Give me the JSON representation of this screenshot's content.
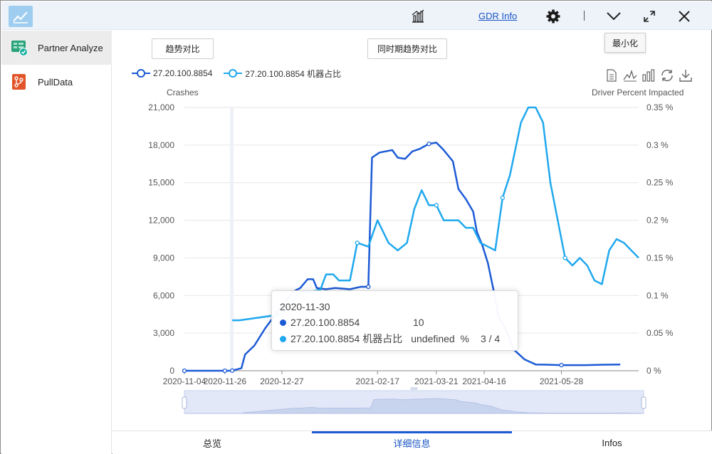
{
  "window": {
    "gdr_link": "GDR Info",
    "minimize_tooltip": "最小化",
    "icons": [
      "chart-icon",
      "settings-gear-icon",
      "chevron-down-icon",
      "fullscreen-icon",
      "close-icon"
    ]
  },
  "sidebar": {
    "items": [
      {
        "label": "Partner Analyze",
        "icon": "partner-analyze-icon",
        "active": true
      },
      {
        "label": "PullData",
        "icon": "pull-data-icon",
        "active": false
      }
    ]
  },
  "buttons": {
    "trend_compare": "趋势对比",
    "same_period_compare": "同时期趋势对比"
  },
  "toolbox": [
    "data-view-icon",
    "line-chart-icon",
    "bar-chart-icon",
    "restore-icon",
    "download-icon"
  ],
  "tooltip": {
    "date": "2020-11-30",
    "rows": [
      {
        "name": "27.20.100.8854",
        "value": "10",
        "extra": ""
      },
      {
        "name": "27.20.100.8854 机器占比",
        "value": "undefined  %",
        "extra": "3 / 4"
      }
    ]
  },
  "tabs": [
    {
      "label": "总览",
      "active": false
    },
    {
      "label": "详细信息",
      "active": true
    },
    {
      "label": "Infos",
      "active": false
    }
  ],
  "colors": {
    "series1": "#1d5bd6",
    "series2": "#1fa8ee",
    "accent": "#1a55c6",
    "grid": "#e6e6e6"
  },
  "chart_data": {
    "type": "line",
    "y_axis_name": "Crashes",
    "y2_axis_name": "Driver Percent Impacted",
    "ylim": [
      0,
      21000
    ],
    "y_ticks": [
      "0",
      "3,000",
      "6,000",
      "9,000",
      "12,000",
      "15,000",
      "18,000",
      "21,000"
    ],
    "y2lim": [
      0,
      0.35
    ],
    "y2_ticks": [
      "0 %",
      "0.05 %",
      "0.1 %",
      "0.15 %",
      "0.2 %",
      "0.25 %",
      "0.3 %",
      "0.35 %"
    ],
    "x_ticks": [
      "2020-11-04",
      "2020-11-26",
      "2020-12-27",
      "2021-02-17",
      "2021-03-21",
      "2021-04-16",
      "2021-05-28"
    ],
    "legend_position": "top-left",
    "grid": true,
    "highlighted_x": "2020-11-30",
    "series": [
      {
        "name": "27.20.100.8854",
        "axis": "left",
        "points": [
          [
            "2020-11-04",
            0
          ],
          [
            "2020-11-26",
            0
          ],
          [
            "2020-11-30",
            10
          ],
          [
            "2020-12-05",
            200
          ],
          [
            "2020-12-07",
            1300
          ],
          [
            "2020-12-12",
            2000
          ],
          [
            "2020-12-18",
            3400
          ],
          [
            "2020-12-27",
            5200
          ],
          [
            "2021-01-02",
            6300
          ],
          [
            "2021-01-06",
            6600
          ],
          [
            "2021-01-10",
            7300
          ],
          [
            "2021-01-13",
            7300
          ],
          [
            "2021-01-15",
            6600
          ],
          [
            "2021-01-20",
            6500
          ],
          [
            "2021-01-25",
            6600
          ],
          [
            "2021-02-02",
            6500
          ],
          [
            "2021-02-08",
            6700
          ],
          [
            "2021-02-12",
            6700
          ],
          [
            "2021-02-14",
            17000
          ],
          [
            "2021-02-18",
            17400
          ],
          [
            "2021-02-25",
            17600
          ],
          [
            "2021-02-28",
            17000
          ],
          [
            "2021-03-04",
            16900
          ],
          [
            "2021-03-08",
            17500
          ],
          [
            "2021-03-12",
            17700
          ],
          [
            "2021-03-17",
            18100
          ],
          [
            "2021-03-21",
            18200
          ],
          [
            "2021-03-25",
            17600
          ],
          [
            "2021-03-30",
            16700
          ],
          [
            "2021-04-02",
            14500
          ],
          [
            "2021-04-06",
            13700
          ],
          [
            "2021-04-10",
            12700
          ],
          [
            "2021-04-12",
            11100
          ],
          [
            "2021-04-15",
            10000
          ],
          [
            "2021-04-18",
            8600
          ],
          [
            "2021-04-21",
            6500
          ],
          [
            "2021-04-24",
            4200
          ],
          [
            "2021-04-28",
            3200
          ],
          [
            "2021-05-02",
            1700
          ],
          [
            "2021-05-08",
            900
          ],
          [
            "2021-05-14",
            500
          ],
          [
            "2021-05-20",
            480
          ],
          [
            "2021-05-28",
            450
          ],
          [
            "2021-06-10",
            450
          ],
          [
            "2021-06-20",
            480
          ],
          [
            "2021-06-29",
            500
          ]
        ]
      },
      {
        "name": "27.20.100.8854 机器占比",
        "axis": "right",
        "points": [
          [
            "2020-11-30",
            0.067
          ],
          [
            "2020-12-04",
            0.067
          ],
          [
            "2020-12-27",
            0.075
          ],
          [
            "2021-01-06",
            0.105
          ],
          [
            "2021-01-12",
            0.105
          ],
          [
            "2021-01-17",
            0.108
          ],
          [
            "2021-01-20",
            0.128
          ],
          [
            "2021-01-24",
            0.128
          ],
          [
            "2021-01-27",
            0.12
          ],
          [
            "2021-02-02",
            0.12
          ],
          [
            "2021-02-06",
            0.17
          ],
          [
            "2021-02-12",
            0.165
          ],
          [
            "2021-02-17",
            0.2
          ],
          [
            "2021-02-23",
            0.17
          ],
          [
            "2021-02-28",
            0.16
          ],
          [
            "2021-03-05",
            0.17
          ],
          [
            "2021-03-09",
            0.215
          ],
          [
            "2021-03-13",
            0.24
          ],
          [
            "2021-03-17",
            0.22
          ],
          [
            "2021-03-21",
            0.22
          ],
          [
            "2021-03-25",
            0.2
          ],
          [
            "2021-04-02",
            0.2
          ],
          [
            "2021-04-06",
            0.19
          ],
          [
            "2021-04-10",
            0.19
          ],
          [
            "2021-04-14",
            0.17
          ],
          [
            "2021-04-18",
            0.165
          ],
          [
            "2021-04-22",
            0.16
          ],
          [
            "2021-04-26",
            0.23
          ],
          [
            "2021-04-30",
            0.26
          ],
          [
            "2021-05-06",
            0.33
          ],
          [
            "2021-05-10",
            0.35
          ],
          [
            "2021-05-14",
            0.35
          ],
          [
            "2021-05-18",
            0.33
          ],
          [
            "2021-05-22",
            0.25
          ],
          [
            "2021-05-26",
            0.2
          ],
          [
            "2021-05-30",
            0.15
          ],
          [
            "2021-06-03",
            0.14
          ],
          [
            "2021-06-07",
            0.15
          ],
          [
            "2021-06-11",
            0.14
          ],
          [
            "2021-06-15",
            0.12
          ],
          [
            "2021-06-19",
            0.115
          ],
          [
            "2021-06-23",
            0.16
          ],
          [
            "2021-06-27",
            0.175
          ],
          [
            "2021-07-01",
            0.17
          ],
          [
            "2021-07-05",
            0.16
          ],
          [
            "2021-07-09",
            0.15
          ]
        ]
      }
    ],
    "data_zoom": {
      "start": "2020-11-04",
      "end": "2021-07-09"
    }
  }
}
